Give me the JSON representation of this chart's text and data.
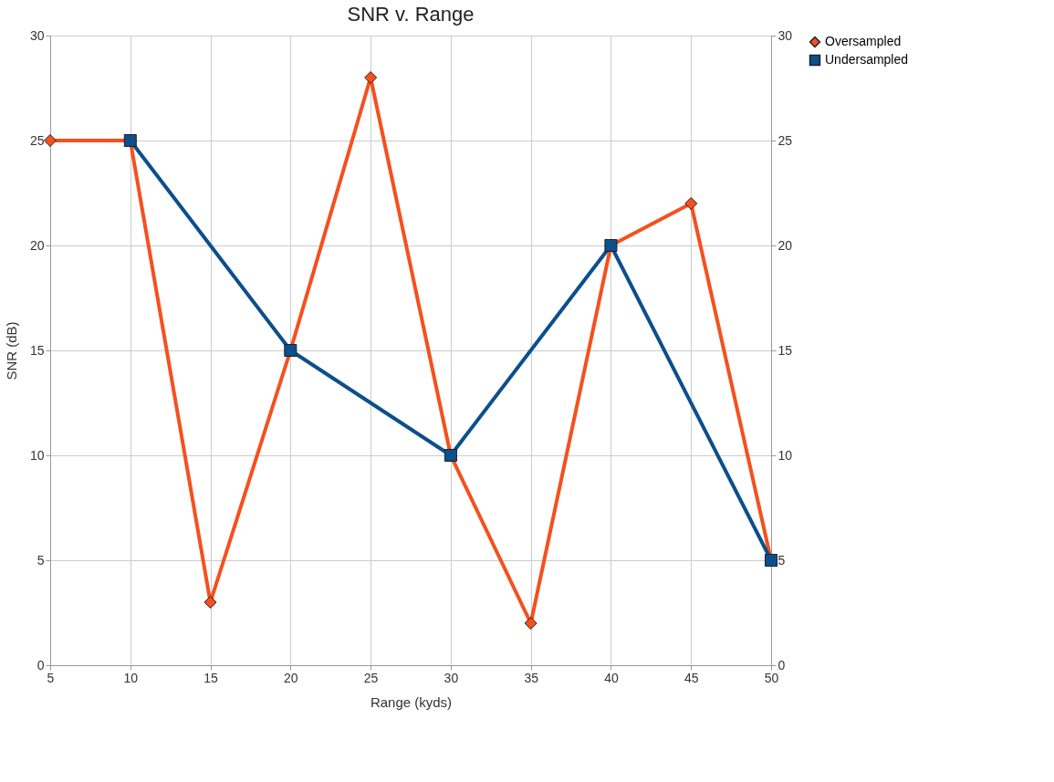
{
  "chart_data": {
    "type": "line",
    "title": "SNR v. Range",
    "xlabel": "Range (kyds)",
    "ylabel": "SNR (dB)",
    "series": [
      {
        "name": "Oversampled",
        "color": "#f5501e",
        "marker": "diamond",
        "x": [
          5,
          10,
          15,
          20,
          25,
          30,
          35,
          40,
          45,
          50
        ],
        "values": [
          25,
          25,
          3,
          15,
          28,
          10,
          2,
          20,
          22,
          5
        ]
      },
      {
        "name": "Undersampled",
        "color": "#0b4f8c",
        "marker": "square",
        "x": [
          10,
          20,
          30,
          40,
          50
        ],
        "values": [
          25,
          15,
          10,
          20,
          5
        ]
      }
    ],
    "xlim": [
      5,
      50
    ],
    "xticks": [
      5,
      10,
      15,
      20,
      25,
      30,
      35,
      40,
      45,
      50
    ],
    "ylim": [
      0,
      30
    ],
    "yticks": [
      0,
      5,
      10,
      15,
      20,
      25,
      30
    ],
    "y2lim": [
      0,
      30
    ],
    "y2ticks": [
      0,
      5,
      10,
      15,
      20,
      25,
      30
    ],
    "grid": true,
    "legend": "right",
    "line_style": "solid"
  }
}
